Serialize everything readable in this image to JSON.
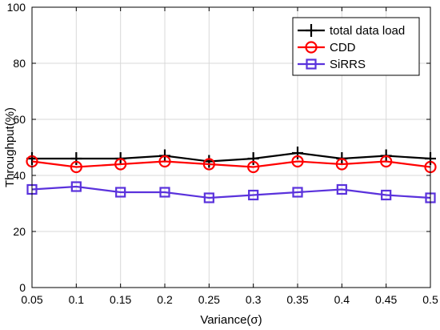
{
  "chart_data": {
    "type": "line",
    "xlabel": "Variance(σ)",
    "ylabel": "Throughput(%)",
    "xlim": [
      0.05,
      0.5
    ],
    "ylim": [
      0,
      100
    ],
    "x": [
      0.05,
      0.1,
      0.15,
      0.2,
      0.25,
      0.3,
      0.35,
      0.4,
      0.45,
      0.5
    ],
    "x_ticks": [
      "0.05",
      "0.1",
      "0.15",
      "0.2",
      "0.25",
      "0.3",
      "0.35",
      "0.4",
      "0.45",
      "0.5"
    ],
    "y_ticks": [
      "0",
      "20",
      "40",
      "60",
      "80",
      "100"
    ],
    "grid": true,
    "legend_position": "top-right",
    "series": [
      {
        "name": "total data load",
        "color": "#000000",
        "marker": "plus",
        "values": [
          46,
          46,
          46,
          47,
          45,
          46,
          48,
          46,
          47,
          46
        ]
      },
      {
        "name": "CDD",
        "color": "#ff0000",
        "marker": "circle",
        "values": [
          45,
          43,
          44,
          45,
          44,
          43,
          45,
          44,
          45,
          43
        ]
      },
      {
        "name": "SiRRS",
        "color": "#5a32dc",
        "marker": "square",
        "values": [
          35,
          36,
          34,
          34,
          32,
          33,
          34,
          35,
          33,
          32
        ]
      }
    ]
  }
}
